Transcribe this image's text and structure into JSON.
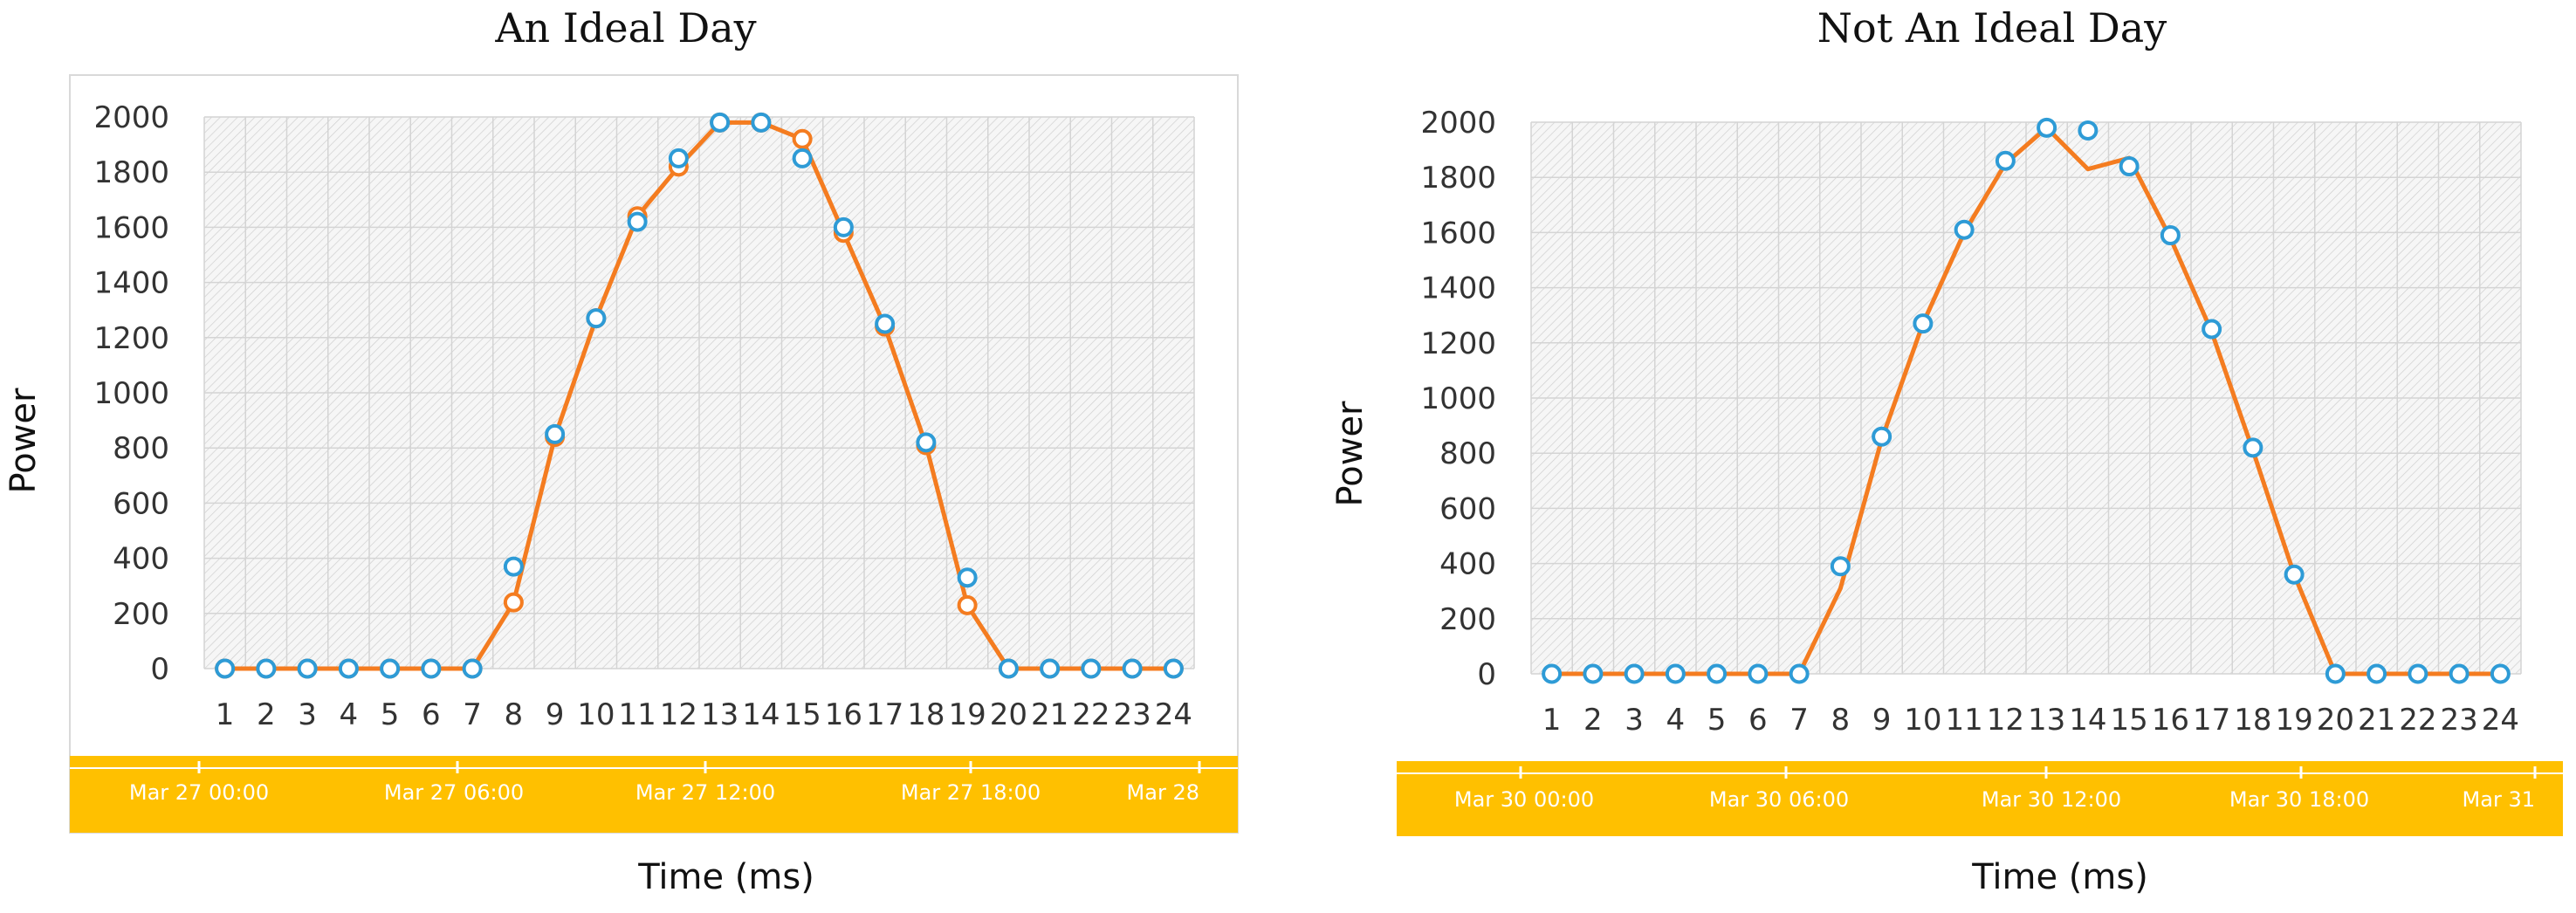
{
  "chart_data": [
    {
      "type": "line",
      "title": "An Ideal Day",
      "xlabel": "Time (ms)",
      "ylabel": "Power",
      "categories": [
        "1",
        "2",
        "3",
        "4",
        "5",
        "6",
        "7",
        "8",
        "9",
        "10",
        "11",
        "12",
        "13",
        "14",
        "15",
        "16",
        "17",
        "18",
        "19",
        "20",
        "21",
        "22",
        "23",
        "24"
      ],
      "ylim": [
        0,
        2000
      ],
      "yticks": [
        0,
        200,
        400,
        600,
        800,
        1000,
        1200,
        1400,
        1600,
        1800,
        2000
      ],
      "grid": true,
      "series": [
        {
          "values": [
            0,
            0,
            0,
            0,
            0,
            0,
            0,
            240,
            840,
            1270,
            1640,
            1820,
            1980,
            1980,
            1920,
            1580,
            1240,
            810,
            230,
            0,
            0,
            0,
            0,
            0
          ],
          "color": "#F47C20",
          "marker": "orange-open-circle",
          "line": true
        },
        {
          "values": [
            0,
            0,
            0,
            0,
            0,
            0,
            0,
            370,
            850,
            1270,
            1620,
            1850,
            1980,
            1980,
            1850,
            1600,
            1250,
            820,
            330,
            0,
            0,
            0,
            0,
            0
          ],
          "color": "#2E9BD6",
          "marker": "blue-open-circle",
          "line": false
        }
      ],
      "timeline": {
        "labels": [
          "Mar 27 00:00",
          "Mar 27 06:00",
          "Mar 27 12:00",
          "Mar 27 18:00",
          "Mar 28"
        ],
        "color": "#FFC000"
      }
    },
    {
      "type": "line",
      "title": "Not An Ideal Day",
      "xlabel": "Time (ms)",
      "ylabel": "Power",
      "categories": [
        "1",
        "2",
        "3",
        "4",
        "5",
        "6",
        "7",
        "8",
        "9",
        "10",
        "11",
        "12",
        "13",
        "14",
        "15",
        "16",
        "17",
        "18",
        "19",
        "20",
        "21",
        "22",
        "23",
        "24"
      ],
      "ylim": [
        0,
        2000
      ],
      "yticks": [
        0,
        200,
        400,
        600,
        800,
        1000,
        1200,
        1400,
        1600,
        1800,
        2000
      ],
      "grid": true,
      "series": [
        {
          "values": [
            0,
            0,
            0,
            0,
            0,
            0,
            0,
            310,
            850,
            1270,
            1600,
            1850,
            1980,
            1830,
            1870,
            1580,
            1240,
            810,
            360,
            0,
            0,
            0,
            0,
            0
          ],
          "color": "#F47C20",
          "marker": "none",
          "line": true
        },
        {
          "values": [
            0,
            0,
            0,
            0,
            0,
            0,
            0,
            390,
            860,
            1270,
            1610,
            1860,
            1980,
            1970,
            1840,
            1590,
            1250,
            820,
            360,
            0,
            0,
            0,
            0,
            0
          ],
          "color": "#2E9BD6",
          "marker": "blue-open-circle",
          "line": false
        }
      ],
      "timeline": {
        "labels": [
          "Mar 30 00:00",
          "Mar 30 06:00",
          "Mar 30 12:00",
          "Mar 30 18:00",
          "Mar 31"
        ],
        "color": "#FFC000"
      }
    }
  ]
}
